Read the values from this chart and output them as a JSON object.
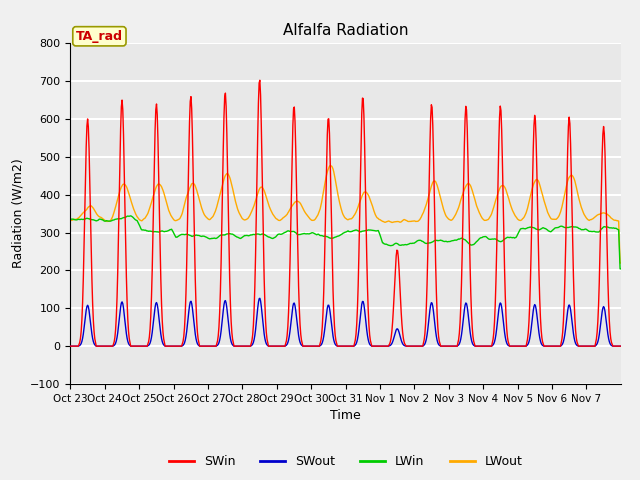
{
  "title": "Alfalfa Radiation",
  "xlabel": "Time",
  "ylabel": "Radiation (W/m2)",
  "ylim": [
    -100,
    800
  ],
  "yticks": [
    -100,
    0,
    100,
    200,
    300,
    400,
    500,
    600,
    700,
    800
  ],
  "xtick_labels": [
    "Oct 23",
    "Oct 24",
    "Oct 25",
    "Oct 26",
    "Oct 27",
    "Oct 28",
    "Oct 29",
    "Oct 30",
    "Oct 31",
    "Nov 1",
    "Nov 2",
    "Nov 3",
    "Nov 4",
    "Nov 5",
    "Nov 6",
    "Nov 7"
  ],
  "n_days": 16,
  "series_colors": {
    "SWin": "#ff0000",
    "SWout": "#0000cc",
    "LWin": "#00cc00",
    "LWout": "#ffaa00"
  },
  "ta_rad_label": "TA_rad",
  "ta_rad_box_color": "#ffffcc",
  "ta_rad_text_color": "#cc0000",
  "background_color": "#f0f0f0",
  "plot_bg_color": "#e8e8e8",
  "grid_color": "#ffffff",
  "sw_peaks": [
    600,
    650,
    640,
    660,
    670,
    705,
    635,
    605,
    660,
    255,
    640,
    635,
    635,
    610,
    605,
    580
  ],
  "swout_ratio": 0.18,
  "lwin_levels": [
    335,
    330,
    310,
    285,
    285,
    290,
    295,
    300,
    305,
    275,
    275,
    280,
    290,
    305,
    310,
    305
  ],
  "lwout_levels": [
    375,
    430,
    425,
    430,
    455,
    430,
    380,
    490,
    420,
    335,
    425,
    435,
    435,
    445,
    455,
    345
  ],
  "line_width": 1.0
}
